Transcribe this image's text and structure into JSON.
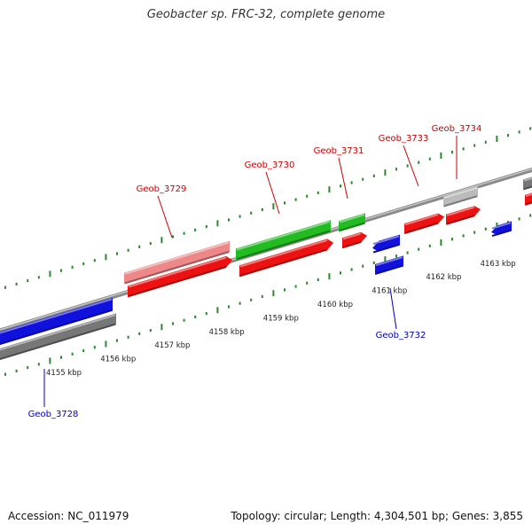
{
  "title": "Geobacter sp. FRC-32, complete genome",
  "footer": {
    "accession": "Accession: NC_011979",
    "summary": "Topology: circular; Length: 4,304,501 bp; Genes: 3,855"
  },
  "scale": {
    "unit": "kbp",
    "ticks": [
      {
        "label": "4155 kbp"
      },
      {
        "label": "4156 kbp"
      },
      {
        "label": "4157 kbp"
      },
      {
        "label": "4158 kbp"
      },
      {
        "label": "4159 kbp"
      },
      {
        "label": "4160 kbp"
      },
      {
        "label": "4161 kbp"
      },
      {
        "label": "4162 kbp"
      },
      {
        "label": "4163 kbp"
      }
    ]
  },
  "colors": {
    "forward_label": "#cc0000",
    "reverse_label": "#0000bb",
    "red": "#ee1111",
    "pink": "#ee8888",
    "green": "#22bb22",
    "blue": "#1111dd",
    "gray": "#777777",
    "lightgray": "#bbbbbb",
    "tick": "#2a8a2a"
  },
  "genes": [
    {
      "label": "Geob_3728",
      "strand": "reverse"
    },
    {
      "label": "Geob_3729",
      "strand": "forward"
    },
    {
      "label": "Geob_3730",
      "strand": "forward"
    },
    {
      "label": "Geob_3731",
      "strand": "forward"
    },
    {
      "label": "Geob_3732",
      "strand": "reverse"
    },
    {
      "label": "Geob_3733",
      "strand": "forward"
    },
    {
      "label": "Geob_3734",
      "strand": "forward"
    }
  ]
}
